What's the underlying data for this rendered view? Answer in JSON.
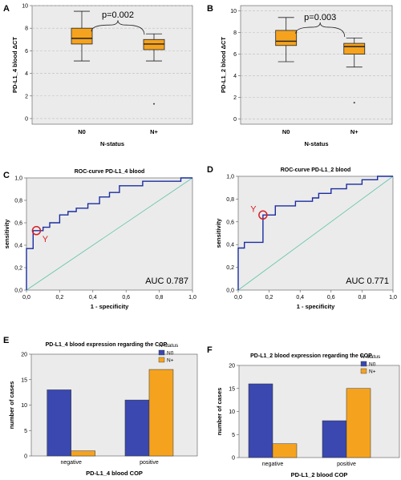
{
  "panels": {
    "A": "A",
    "B": "B",
    "C": "C",
    "D": "D",
    "E": "E",
    "F": "F"
  },
  "colors": {
    "box_fill": "#f5a31e",
    "plot_bg": "#ebebeb",
    "roc_line": "#1a2ea0",
    "diag_line": "#5fc4a8",
    "marker": "#d81f26",
    "bar_n0": "#3a48b0",
    "bar_np": "#f5a31e"
  },
  "chart_data": [
    {
      "id": "A",
      "type": "box",
      "title": "",
      "xlabel": "N-status",
      "ylabel": "PD-L1_4 blood ΔCT",
      "categories": [
        "N0",
        "N+"
      ],
      "ylim": [
        -0.5,
        10
      ],
      "yticks": [
        "0",
        "2",
        "4",
        "6",
        "8",
        "10"
      ],
      "boxes": [
        {
          "min": 5.1,
          "q1": 6.6,
          "median": 7.1,
          "q3": 8.0,
          "max": 9.5,
          "outliers": []
        },
        {
          "min": 5.1,
          "q1": 6.1,
          "median": 6.6,
          "q3": 7.0,
          "max": 7.5,
          "outliers": [
            1.3
          ]
        }
      ],
      "annotation": "p=0.002"
    },
    {
      "id": "B",
      "type": "box",
      "title": "",
      "xlabel": "N-status",
      "ylabel": "PD-L1_2 blood ΔCT",
      "categories": [
        "N0",
        "N+"
      ],
      "ylim": [
        -0.5,
        10.5
      ],
      "yticks": [
        "0",
        "2",
        "4",
        "6",
        "8",
        "10"
      ],
      "boxes": [
        {
          "min": 5.3,
          "q1": 6.8,
          "median": 7.2,
          "q3": 8.2,
          "max": 9.4,
          "outliers": []
        },
        {
          "min": 4.8,
          "q1": 6.0,
          "median": 6.7,
          "q3": 7.0,
          "max": 7.5,
          "outliers": [
            1.5
          ]
        }
      ],
      "annotation": "p=0.003"
    },
    {
      "id": "C",
      "type": "line",
      "title": "ROC-curve PD-L1_4 blood",
      "xlabel": "1 - specificity",
      "ylabel": "sensitivity",
      "xlim": [
        0,
        1
      ],
      "ylim": [
        0,
        1
      ],
      "xticks": [
        "0,0",
        "0,2",
        "0,4",
        "0,6",
        "0,8",
        "1,0"
      ],
      "yticks": [
        "0,0",
        "0,2",
        "0,4",
        "0,6",
        "0,8",
        "1,0"
      ],
      "roc_points": [
        [
          0,
          0
        ],
        [
          0,
          0.37
        ],
        [
          0.04,
          0.37
        ],
        [
          0.04,
          0.53
        ],
        [
          0.1,
          0.53
        ],
        [
          0.1,
          0.56
        ],
        [
          0.14,
          0.56
        ],
        [
          0.14,
          0.6
        ],
        [
          0.2,
          0.6
        ],
        [
          0.2,
          0.67
        ],
        [
          0.25,
          0.67
        ],
        [
          0.25,
          0.7
        ],
        [
          0.3,
          0.7
        ],
        [
          0.3,
          0.73
        ],
        [
          0.37,
          0.73
        ],
        [
          0.37,
          0.77
        ],
        [
          0.44,
          0.77
        ],
        [
          0.44,
          0.83
        ],
        [
          0.5,
          0.83
        ],
        [
          0.5,
          0.87
        ],
        [
          0.56,
          0.87
        ],
        [
          0.56,
          0.93
        ],
        [
          0.7,
          0.93
        ],
        [
          0.7,
          0.97
        ],
        [
          0.93,
          0.97
        ],
        [
          0.93,
          1.0
        ],
        [
          1.0,
          1.0
        ]
      ],
      "marker": {
        "x": 0.06,
        "y": 0.53,
        "label": "Y"
      },
      "auc": "AUC 0.787"
    },
    {
      "id": "D",
      "type": "line",
      "title": "ROC-curve PD-L1_2 blood",
      "xlabel": "1 - specificity",
      "ylabel": "sensitivity",
      "xlim": [
        0,
        1
      ],
      "ylim": [
        0,
        1
      ],
      "xticks": [
        "0,0",
        "0,2",
        "0,4",
        "0,6",
        "0,8",
        "1,0"
      ],
      "yticks": [
        "0,0",
        "0,2",
        "0,4",
        "0,6",
        "0,8",
        "1,0"
      ],
      "roc_points": [
        [
          0,
          0
        ],
        [
          0,
          0.37
        ],
        [
          0.04,
          0.37
        ],
        [
          0.04,
          0.42
        ],
        [
          0.16,
          0.42
        ],
        [
          0.16,
          0.66
        ],
        [
          0.24,
          0.66
        ],
        [
          0.24,
          0.74
        ],
        [
          0.37,
          0.74
        ],
        [
          0.37,
          0.78
        ],
        [
          0.48,
          0.78
        ],
        [
          0.48,
          0.81
        ],
        [
          0.52,
          0.81
        ],
        [
          0.52,
          0.85
        ],
        [
          0.6,
          0.85
        ],
        [
          0.6,
          0.89
        ],
        [
          0.7,
          0.89
        ],
        [
          0.7,
          0.93
        ],
        [
          0.8,
          0.93
        ],
        [
          0.8,
          0.97
        ],
        [
          0.9,
          0.97
        ],
        [
          0.9,
          1.0
        ],
        [
          1.0,
          1.0
        ]
      ],
      "marker": {
        "x": 0.16,
        "y": 0.66,
        "label": "Y"
      },
      "auc": "AUC 0.771"
    },
    {
      "id": "E",
      "type": "bar",
      "title": "PD-L1_4 blood expression regarding the COP",
      "xlabel": "PD-L1_4 blood COP",
      "ylabel": "number of cases",
      "categories": [
        "negative",
        "positive"
      ],
      "ylim": [
        0,
        20
      ],
      "yticks": [
        "0",
        "5",
        "10",
        "15",
        "20"
      ],
      "legend_title": "N-status",
      "series": [
        {
          "name": "N0",
          "values": [
            13,
            11
          ]
        },
        {
          "name": "N+",
          "values": [
            1,
            17
          ]
        }
      ]
    },
    {
      "id": "F",
      "type": "bar",
      "title": "PD-L1_2 blood expression regarding the COP",
      "xlabel": "PD-L1_2 blood COP",
      "ylabel": "number of cases",
      "categories": [
        "negative",
        "positive"
      ],
      "ylim": [
        0,
        20
      ],
      "yticks": [
        "0",
        "5",
        "10",
        "15",
        "20"
      ],
      "legend_title": "N-status",
      "series": [
        {
          "name": "N0",
          "values": [
            16,
            8
          ]
        },
        {
          "name": "N+",
          "values": [
            3,
            15
          ]
        }
      ]
    }
  ]
}
